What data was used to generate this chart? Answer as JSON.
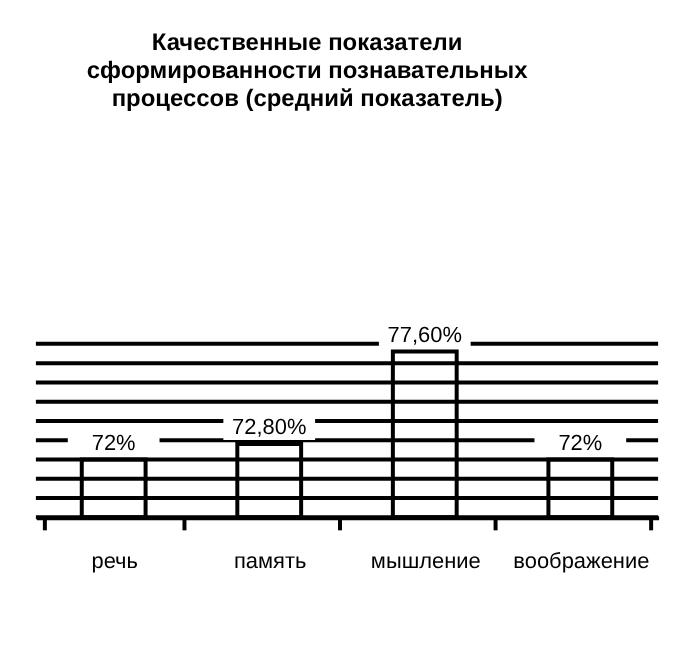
{
  "chart_data": {
    "type": "bar",
    "title": [
      "Качественные показатели",
      "сформированности познавательных",
      "процессов (средний показатель)"
    ],
    "categories": [
      "речь",
      "память",
      "мышление",
      "воображение"
    ],
    "values": [
      72,
      72.8,
      77.6,
      72
    ],
    "value_labels": [
      "72%",
      "72,80%",
      "77,60%",
      "72%"
    ],
    "colors": [
      "#ffffff",
      "#ffffff",
      "#ffffff",
      "#ffffff"
    ],
    "ylim": [
      69,
      78
    ],
    "yticks": [
      {
        "value": 69,
        "label": null
      },
      {
        "value": 70,
        "label": null
      },
      {
        "value": 71,
        "label": null
      },
      {
        "value": 72,
        "label": null
      },
      {
        "value": 73,
        "label": null
      },
      {
        "value": 74,
        "label": null
      },
      {
        "value": 75,
        "label": null
      },
      {
        "value": 76,
        "label": null
      },
      {
        "value": 77,
        "label": null
      },
      {
        "value": 78,
        "label": null
      }
    ],
    "grid": "y",
    "tick_labels": "x"
  }
}
